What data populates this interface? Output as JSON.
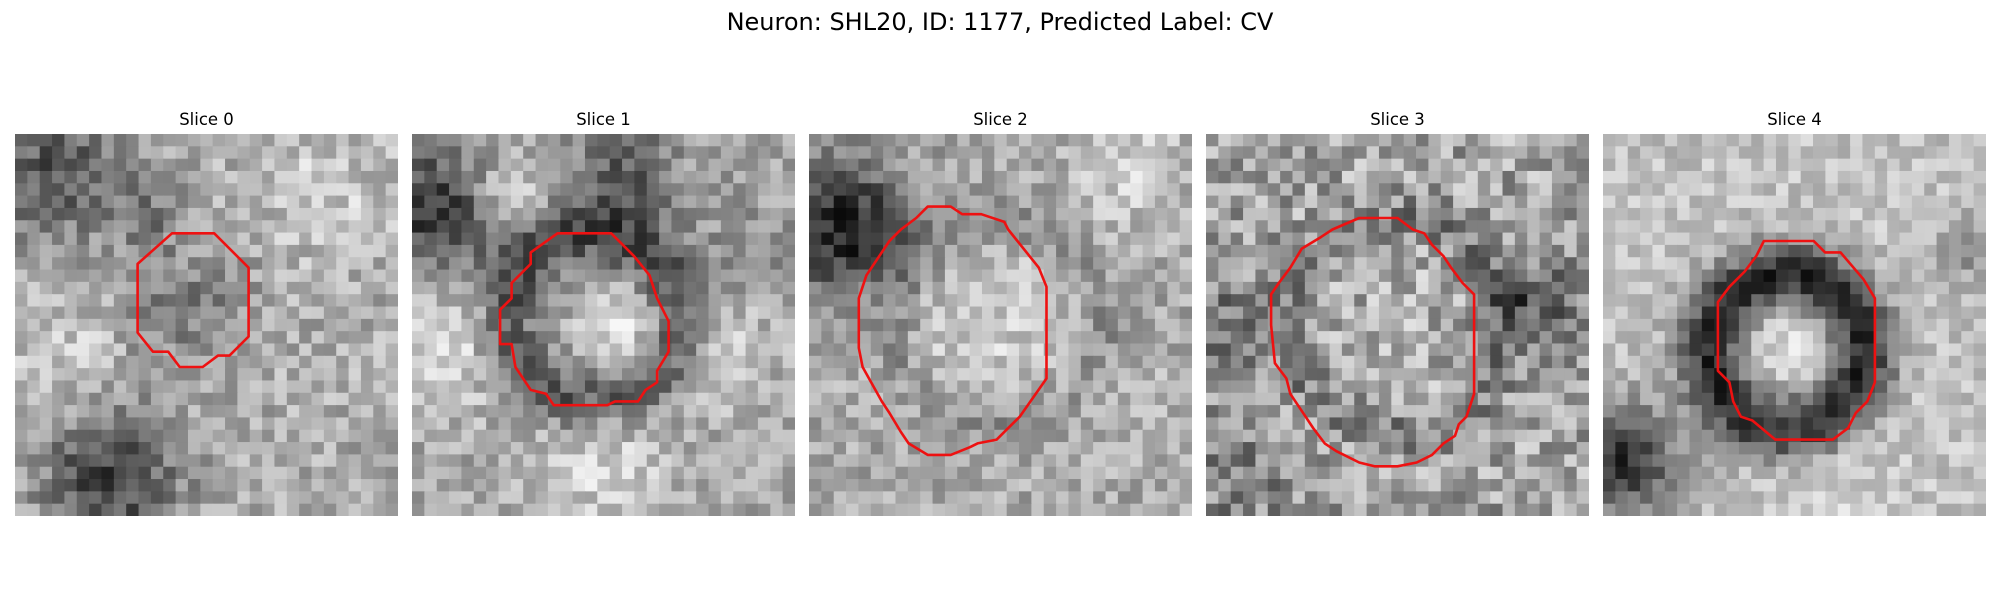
{
  "figure": {
    "title": "Neuron: SHL20, ID: 1177, Predicted Label: CV"
  },
  "contour_color": "#ee1111",
  "slices": [
    {
      "label": "Slice 0"
    },
    {
      "label": "Slice 1"
    },
    {
      "label": "Slice 2"
    },
    {
      "label": "Slice 3"
    },
    {
      "label": "Slice 4"
    }
  ]
}
